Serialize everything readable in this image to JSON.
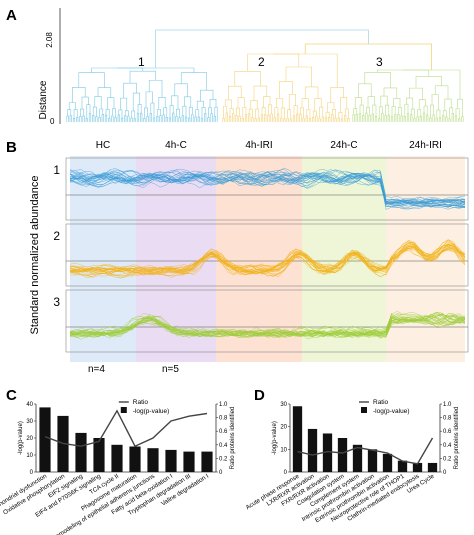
{
  "panels": {
    "A": {
      "label": "A",
      "ylabel": "Distance",
      "ytick_top": "2.08",
      "ytick_bottom": "0",
      "cluster_labels": [
        "1",
        "2",
        "3"
      ],
      "colors": {
        "c1": "#7ec8e3",
        "c2": "#f3d27a",
        "c3": "#b9dc8a",
        "root": "#a8d8ea"
      }
    },
    "B": {
      "label": "B",
      "ylabel": "Standard normalized abundance",
      "groups": [
        "HC",
        "4h-C",
        "4h-IRI",
        "24h-C",
        "24h-IRI"
      ],
      "row_labels": [
        "1",
        "2",
        "3"
      ],
      "n_labels": [
        "n=4",
        "n=5"
      ],
      "bg_colors": [
        "#dfeaf8",
        "#eadcf2",
        "#fde1d2",
        "#eef6d7",
        "#fdf0e2"
      ],
      "line_colors": [
        "#3a9bd5",
        "#f2b21a",
        "#9ccc3a"
      ]
    },
    "C": {
      "label": "C",
      "legend": {
        "line": "Ratio",
        "bar": "-log(p-value)"
      },
      "ylabel_left": "-log(p-value)",
      "ylabel_right": "Ratio proteins identified",
      "chart_data": {
        "type": "bar",
        "categories": [
          "Mitochondrial dysfunction",
          "Oxidative phosphorylation",
          "EIF2 signaling",
          "EIF4 and P70S6K signaling",
          "TCA cycle II",
          "Phagosome maturation",
          "Remodeling of epithelial adherens junctions",
          "Fatty acid beta-oxidation I",
          "Tryptophan degradation III",
          "Valine degradation I"
        ],
        "series": [
          {
            "name": "-log(p-value)",
            "axis": "left",
            "values": [
              38,
              33,
              23,
              20,
              16,
              15,
              14,
              13,
              12,
              12
            ]
          },
          {
            "name": "Ratio",
            "axis": "right",
            "values": [
              0.52,
              0.42,
              0.38,
              0.45,
              0.9,
              0.38,
              0.5,
              0.75,
              0.82,
              0.86
            ]
          }
        ],
        "yticks_left": [
          "0",
          "10",
          "20",
          "30",
          "40"
        ],
        "yticks_right": [
          "0",
          "0.2",
          "0.4",
          "0.6",
          "0.8",
          "1.0"
        ],
        "ylim_left": [
          0,
          40
        ],
        "ylim_right": [
          0,
          1.0
        ]
      }
    },
    "D": {
      "label": "D",
      "legend": {
        "line": "Ratio",
        "bar": "-log(p-value)"
      },
      "ylabel_left": "-log(p-value)",
      "ylabel_right": "Ratio proteins identified",
      "chart_data": {
        "type": "bar",
        "categories": [
          "Acute phase response",
          "LXR/RXR activation",
          "FXR/RXR activation",
          "Coagulation system",
          "Complement system",
          "Intrinsic prothrombin activation",
          "Extrinsic prothrombin activation",
          "Neuroprotective role of THOP1",
          "Clathrin-mediated endocytosis",
          "Urea Cycle"
        ],
        "series": [
          {
            "name": "-log(p-value)",
            "axis": "left",
            "values": [
              29,
              19,
              17,
              15,
              12,
              10,
              8,
              5,
              4,
              4
            ]
          },
          {
            "name": "Ratio",
            "axis": "right",
            "values": [
              0.3,
              0.25,
              0.3,
              0.28,
              0.36,
              0.32,
              0.28,
              0.16,
              0.12,
              0.5
            ]
          }
        ],
        "yticks_left": [
          "0",
          "10",
          "20",
          "30"
        ],
        "yticks_right": [
          "0",
          "0.2",
          "0.4",
          "0.6",
          "0.8",
          "1.0"
        ],
        "ylim_left": [
          0,
          30
        ],
        "ylim_right": [
          0,
          1.0
        ]
      }
    }
  }
}
